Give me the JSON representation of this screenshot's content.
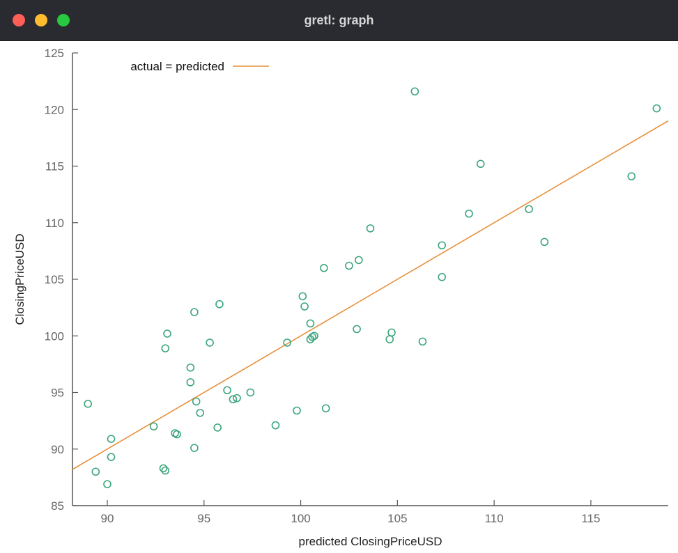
{
  "window": {
    "title": "gretl: graph",
    "buttons": [
      {
        "name": "close",
        "color": "#fe5f57"
      },
      {
        "name": "minimize",
        "color": "#febc2e"
      },
      {
        "name": "zoom",
        "color": "#28c840"
      }
    ]
  },
  "chart_data": {
    "type": "scatter",
    "xlabel": "predicted ClosingPriceUSD",
    "ylabel": "ClosingPriceUSD",
    "xlim": [
      88.2,
      119.0
    ],
    "ylim": [
      85,
      125
    ],
    "x_ticks": [
      90,
      95,
      100,
      105,
      110,
      115
    ],
    "y_ticks": [
      85,
      90,
      95,
      100,
      105,
      110,
      115,
      120,
      125
    ],
    "grid": false,
    "legend": {
      "label": "actual = predicted",
      "placement": "top-left"
    },
    "reference_line": {
      "name": "actual = predicted",
      "color": "#e8913c"
    },
    "marker_color": "#3aa57c",
    "series": [
      {
        "points": [
          [
            89.0,
            94.0
          ],
          [
            89.4,
            88.0
          ],
          [
            90.0,
            86.9
          ],
          [
            90.2,
            90.9
          ],
          [
            90.2,
            89.3
          ],
          [
            92.4,
            92.0
          ],
          [
            92.9,
            88.3
          ],
          [
            93.0,
            88.1
          ],
          [
            93.0,
            98.9
          ],
          [
            93.1,
            100.2
          ],
          [
            93.5,
            91.4
          ],
          [
            93.6,
            91.3
          ],
          [
            94.3,
            97.2
          ],
          [
            94.3,
            95.9
          ],
          [
            94.5,
            102.1
          ],
          [
            94.5,
            90.1
          ],
          [
            94.6,
            94.2
          ],
          [
            94.8,
            93.2
          ],
          [
            95.3,
            99.4
          ],
          [
            95.7,
            91.9
          ],
          [
            95.8,
            102.8
          ],
          [
            96.2,
            95.2
          ],
          [
            96.5,
            94.4
          ],
          [
            96.7,
            94.5
          ],
          [
            97.4,
            95.0
          ],
          [
            98.7,
            92.1
          ],
          [
            99.3,
            99.4
          ],
          [
            99.8,
            93.4
          ],
          [
            100.1,
            103.5
          ],
          [
            100.2,
            102.6
          ],
          [
            100.5,
            101.1
          ],
          [
            100.5,
            99.7
          ],
          [
            100.6,
            99.9
          ],
          [
            100.7,
            100.0
          ],
          [
            101.2,
            106.0
          ],
          [
            101.3,
            93.6
          ],
          [
            102.5,
            106.2
          ],
          [
            102.9,
            100.6
          ],
          [
            103.0,
            106.7
          ],
          [
            103.6,
            109.5
          ],
          [
            104.6,
            99.7
          ],
          [
            104.7,
            100.3
          ],
          [
            105.9,
            121.6
          ],
          [
            106.3,
            99.5
          ],
          [
            107.3,
            108.0
          ],
          [
            107.3,
            105.2
          ],
          [
            108.7,
            110.8
          ],
          [
            109.3,
            115.2
          ],
          [
            111.8,
            111.2
          ],
          [
            112.6,
            108.3
          ],
          [
            117.1,
            114.1
          ],
          [
            118.4,
            120.1
          ]
        ]
      }
    ]
  }
}
